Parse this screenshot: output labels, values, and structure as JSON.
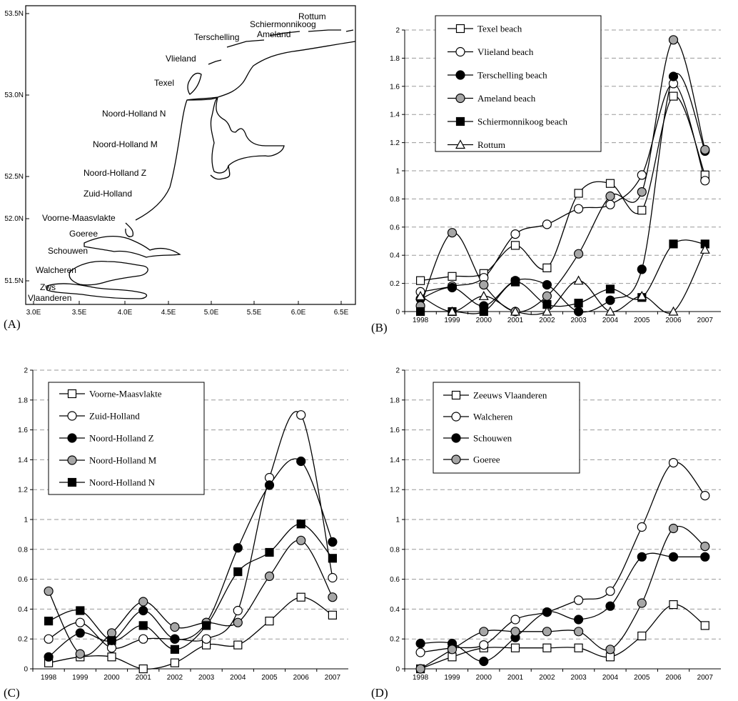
{
  "panels": {
    "A": {
      "letter": "(A)",
      "lat_ticks": [
        "53.5N",
        "53.0N",
        "52.5N",
        "52.0N",
        "51.5N"
      ],
      "lon_ticks": [
        "3.0E",
        "3.5E",
        "4.0E",
        "4.5E",
        "5.0E",
        "5.5E",
        "6.0E",
        "6.5E"
      ],
      "places": [
        "Rottum",
        "Schiermonnikoog",
        "Ameland",
        "Terschelling",
        "Vlieland",
        "Texel",
        "Noord-Holland N",
        "Noord-Holland M",
        "Noord-Holland Z",
        "Zuid-Holland",
        "Voorne-Maasvlakte",
        "Goeree",
        "Schouwen",
        "Walcheren",
        "Zws",
        "Vlaanderen"
      ]
    },
    "B": {
      "letter": "(B)"
    },
    "C": {
      "letter": "(C)"
    },
    "D": {
      "letter": "(D)"
    }
  },
  "chart_data": [
    {
      "panel": "B",
      "type": "line",
      "x": [
        "1998",
        "1999",
        "2000",
        "2001",
        "2002",
        "2003",
        "2004",
        "2005",
        "2006",
        "2007"
      ],
      "ylim": [
        0,
        2
      ],
      "yticks": [
        "0",
        "0.2",
        "0.4",
        "0.6",
        "0.8",
        "1",
        "1.2",
        "1.4",
        "1.6",
        "1.8",
        "2"
      ],
      "grid": true,
      "legend_position": "top-left",
      "series": [
        {
          "name": "Texel beach",
          "marker": "square-open",
          "values": [
            0.22,
            0.25,
            0.27,
            0.47,
            0.31,
            0.84,
            0.91,
            0.72,
            1.53,
            0.97
          ]
        },
        {
          "name": "Vlieland beach",
          "marker": "circle-open",
          "values": [
            0.14,
            0.18,
            0.24,
            0.55,
            0.62,
            0.73,
            0.76,
            0.97,
            1.62,
            0.93
          ]
        },
        {
          "name": "Terschelling beach",
          "marker": "circle-black",
          "values": [
            0.09,
            0.17,
            0.04,
            0.22,
            0.19,
            0.0,
            0.08,
            0.3,
            1.67,
            1.14
          ]
        },
        {
          "name": "Ameland beach",
          "marker": "circle-gray",
          "values": [
            0.04,
            0.56,
            0.19,
            0.0,
            0.11,
            0.41,
            0.82,
            0.85,
            1.93,
            1.15
          ]
        },
        {
          "name": "Schiermonnikoog beach",
          "marker": "square-black",
          "values": [
            0.0,
            0.0,
            0.0,
            0.21,
            0.05,
            0.06,
            0.16,
            0.1,
            0.48,
            0.48
          ]
        },
        {
          "name": "Rottum",
          "marker": "triangle-open",
          "values": [
            0.11,
            0.0,
            0.11,
            0.0,
            0.0,
            0.22,
            0.0,
            0.11,
            0.0,
            0.44
          ]
        }
      ]
    },
    {
      "panel": "C",
      "type": "line",
      "x": [
        "1998",
        "1999",
        "2000",
        "2001",
        "2002",
        "2003",
        "2004",
        "2005",
        "2006",
        "2007"
      ],
      "ylim": [
        0,
        2
      ],
      "yticks": [
        "0",
        "0.2",
        "0.4",
        "0.6",
        "0.8",
        "1",
        "1.2",
        "1.4",
        "1.6",
        "1.8",
        "2"
      ],
      "grid": true,
      "legend_position": "top-left",
      "series": [
        {
          "name": "Voorne-Maasvlakte",
          "marker": "square-open",
          "values": [
            0.04,
            0.08,
            0.08,
            0.0,
            0.04,
            0.16,
            0.16,
            0.32,
            0.48,
            0.36
          ]
        },
        {
          "name": "Zuid-Holland",
          "marker": "circle-open",
          "values": [
            0.2,
            0.31,
            0.14,
            0.2,
            0.2,
            0.2,
            0.39,
            1.28,
            1.7,
            0.61
          ]
        },
        {
          "name": "Noord-Holland Z",
          "marker": "circle-black",
          "values": [
            0.08,
            0.24,
            0.19,
            0.39,
            0.2,
            0.31,
            0.81,
            1.23,
            1.39,
            0.85
          ]
        },
        {
          "name": "Noord-Holland M",
          "marker": "circle-gray",
          "values": [
            0.52,
            0.1,
            0.24,
            0.45,
            0.28,
            0.31,
            0.31,
            0.62,
            0.86,
            0.48
          ]
        },
        {
          "name": "Noord-Holland N",
          "marker": "square-black",
          "values": [
            0.32,
            0.39,
            0.19,
            0.29,
            0.13,
            0.29,
            0.65,
            0.78,
            0.97,
            0.74
          ]
        }
      ]
    },
    {
      "panel": "D",
      "type": "line",
      "x": [
        "1998",
        "1999",
        "2000",
        "2001",
        "2002",
        "2003",
        "2004",
        "2005",
        "2006",
        "2007"
      ],
      "ylim": [
        0,
        2
      ],
      "yticks": [
        "0",
        "0.2",
        "0.4",
        "0.6",
        "0.8",
        "1",
        "1.2",
        "1.4",
        "1.6",
        "1.8",
        "2"
      ],
      "grid": true,
      "legend_position": "top-left",
      "series": [
        {
          "name": "Zeeuws Vlaanderen",
          "marker": "square-open",
          "values": [
            0.0,
            0.08,
            0.14,
            0.14,
            0.14,
            0.14,
            0.08,
            0.22,
            0.43,
            0.29
          ]
        },
        {
          "name": "Walcheren",
          "marker": "circle-open",
          "values": [
            0.11,
            0.14,
            0.16,
            0.33,
            0.38,
            0.46,
            0.52,
            0.95,
            1.38,
            1.16
          ]
        },
        {
          "name": "Schouwen",
          "marker": "circle-black",
          "values": [
            0.17,
            0.17,
            0.05,
            0.21,
            0.38,
            0.33,
            0.42,
            0.75,
            0.75,
            0.75
          ]
        },
        {
          "name": "Goeree",
          "marker": "circle-gray",
          "values": [
            0.0,
            0.13,
            0.25,
            0.25,
            0.25,
            0.25,
            0.13,
            0.44,
            0.94,
            0.82
          ]
        }
      ]
    }
  ]
}
